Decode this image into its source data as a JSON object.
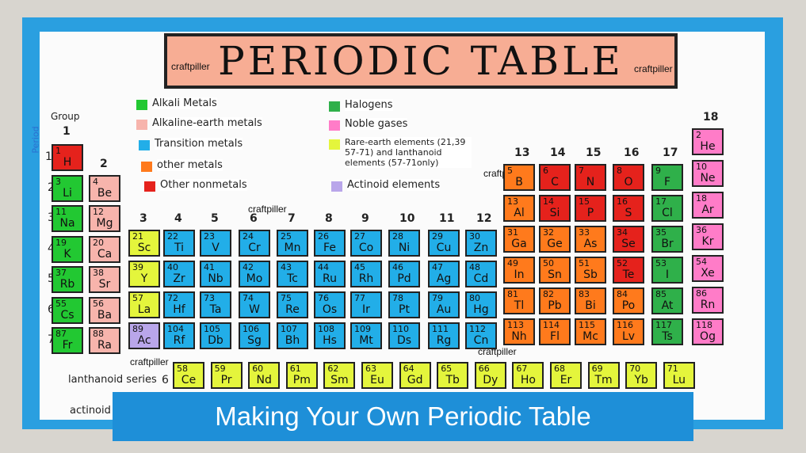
{
  "title": "PERIODIC TABLE",
  "watermark": "craftpiller",
  "group_heading": "Group",
  "period_heading": "Period",
  "groups": [
    1,
    2,
    3,
    4,
    5,
    6,
    7,
    8,
    9,
    10,
    11,
    12,
    13,
    14,
    15,
    16,
    17,
    18
  ],
  "periods": [
    1,
    2,
    3,
    4,
    5,
    6,
    7
  ],
  "legend": [
    {
      "label": "Alkali Metals",
      "color": "#22c832"
    },
    {
      "label": "Alkaline-earth metals",
      "color": "#f7b4ac"
    },
    {
      "label": "Transition metals",
      "color": "#22aee8"
    },
    {
      "label": "other metals",
      "color": "#ff7a1c"
    },
    {
      "label": "Other nonmetals",
      "color": "#e5221c"
    },
    {
      "label": "Halogens",
      "color": "#2fb04a"
    },
    {
      "label": "Noble gases",
      "color": "#ff7cc8"
    },
    {
      "label": "Rare-earth elements (21,39 57-71) and lanthanoid elements (57-71only)",
      "color": "#e4f53c"
    },
    {
      "label": "Actinoid elements",
      "color": "#b9a6ea"
    }
  ],
  "elements": [
    {
      "n": 1,
      "s": "H"
    },
    {
      "n": 2,
      "s": "He"
    },
    {
      "n": 3,
      "s": "Li"
    },
    {
      "n": 4,
      "s": "Be"
    },
    {
      "n": 5,
      "s": "B"
    },
    {
      "n": 6,
      "s": "C"
    },
    {
      "n": 7,
      "s": "N"
    },
    {
      "n": 8,
      "s": "O"
    },
    {
      "n": 9,
      "s": "F"
    },
    {
      "n": 10,
      "s": "Ne"
    },
    {
      "n": 11,
      "s": "Na"
    },
    {
      "n": 12,
      "s": "Mg"
    },
    {
      "n": 13,
      "s": "Al"
    },
    {
      "n": 14,
      "s": "Si"
    },
    {
      "n": 15,
      "s": "P"
    },
    {
      "n": 16,
      "s": "S"
    },
    {
      "n": 17,
      "s": "Cl"
    },
    {
      "n": 18,
      "s": "Ar"
    },
    {
      "n": 19,
      "s": "K"
    },
    {
      "n": 20,
      "s": "Ca"
    },
    {
      "n": 21,
      "s": "Sc"
    },
    {
      "n": 22,
      "s": "Ti"
    },
    {
      "n": 23,
      "s": "V"
    },
    {
      "n": 24,
      "s": "Cr"
    },
    {
      "n": 25,
      "s": "Mn"
    },
    {
      "n": 26,
      "s": "Fe"
    },
    {
      "n": 27,
      "s": "Co"
    },
    {
      "n": 28,
      "s": "Ni"
    },
    {
      "n": 29,
      "s": "Cu"
    },
    {
      "n": 30,
      "s": "Zn"
    },
    {
      "n": 31,
      "s": "Ga"
    },
    {
      "n": 32,
      "s": "Ge"
    },
    {
      "n": 33,
      "s": "As"
    },
    {
      "n": 34,
      "s": "Se"
    },
    {
      "n": 35,
      "s": "Br"
    },
    {
      "n": 36,
      "s": "Kr"
    },
    {
      "n": 37,
      "s": "Rb"
    },
    {
      "n": 38,
      "s": "Sr"
    },
    {
      "n": 39,
      "s": "Y"
    },
    {
      "n": 40,
      "s": "Zr"
    },
    {
      "n": 41,
      "s": "Nb"
    },
    {
      "n": 42,
      "s": "Mo"
    },
    {
      "n": 43,
      "s": "Tc"
    },
    {
      "n": 44,
      "s": "Ru"
    },
    {
      "n": 45,
      "s": "Rh"
    },
    {
      "n": 46,
      "s": "Pd"
    },
    {
      "n": 47,
      "s": "Ag"
    },
    {
      "n": 48,
      "s": "Cd"
    },
    {
      "n": 49,
      "s": "In"
    },
    {
      "n": 50,
      "s": "Sn"
    },
    {
      "n": 51,
      "s": "Sb"
    },
    {
      "n": 52,
      "s": "Te"
    },
    {
      "n": 53,
      "s": "I"
    },
    {
      "n": 54,
      "s": "Xe"
    },
    {
      "n": 55,
      "s": "Cs"
    },
    {
      "n": 56,
      "s": "Ba"
    },
    {
      "n": 57,
      "s": "La"
    },
    {
      "n": 72,
      "s": "Hf"
    },
    {
      "n": 73,
      "s": "Ta"
    },
    {
      "n": 74,
      "s": "W"
    },
    {
      "n": 75,
      "s": "Re"
    },
    {
      "n": 76,
      "s": "Os"
    },
    {
      "n": 77,
      "s": "Ir"
    },
    {
      "n": 78,
      "s": "Pt"
    },
    {
      "n": 79,
      "s": "Au"
    },
    {
      "n": 80,
      "s": "Hg"
    },
    {
      "n": 81,
      "s": "Tl"
    },
    {
      "n": 82,
      "s": "Pb"
    },
    {
      "n": 83,
      "s": "Bi"
    },
    {
      "n": 84,
      "s": "Po"
    },
    {
      "n": 85,
      "s": "At"
    },
    {
      "n": 86,
      "s": "Rn"
    },
    {
      "n": 87,
      "s": "Fr"
    },
    {
      "n": 88,
      "s": "Ra"
    },
    {
      "n": 89,
      "s": "Ac"
    },
    {
      "n": 104,
      "s": "Rf"
    },
    {
      "n": 105,
      "s": "Db"
    },
    {
      "n": 106,
      "s": "Sg"
    },
    {
      "n": 107,
      "s": "Bh"
    },
    {
      "n": 108,
      "s": "Hs"
    },
    {
      "n": 109,
      "s": "Mt"
    },
    {
      "n": 110,
      "s": "Ds"
    },
    {
      "n": 111,
      "s": "Rg"
    },
    {
      "n": 112,
      "s": "Cn"
    },
    {
      "n": 113,
      "s": "Nh"
    },
    {
      "n": 114,
      "s": "Fl"
    },
    {
      "n": 115,
      "s": "Mc"
    },
    {
      "n": 116,
      "s": "Lv"
    },
    {
      "n": 117,
      "s": "Ts"
    },
    {
      "n": 118,
      "s": "Og"
    }
  ],
  "lanthanoids": [
    {
      "n": 58,
      "s": "Ce"
    },
    {
      "n": 59,
      "s": "Pr"
    },
    {
      "n": 60,
      "s": "Nd"
    },
    {
      "n": 61,
      "s": "Pm"
    },
    {
      "n": 62,
      "s": "Sm"
    },
    {
      "n": 63,
      "s": "Eu"
    },
    {
      "n": 64,
      "s": "Gd"
    },
    {
      "n": 65,
      "s": "Tb"
    },
    {
      "n": 66,
      "s": "Dy"
    },
    {
      "n": 67,
      "s": "Ho"
    },
    {
      "n": 68,
      "s": "Er"
    },
    {
      "n": 69,
      "s": "Tm"
    },
    {
      "n": 70,
      "s": "Yb"
    },
    {
      "n": 71,
      "s": "Lu"
    }
  ],
  "lanthanoid_label": "lanthanoid series",
  "lanthanoid_period": 6,
  "actinoid_label": "actinoid",
  "caption": "Making Your Own Periodic Table"
}
